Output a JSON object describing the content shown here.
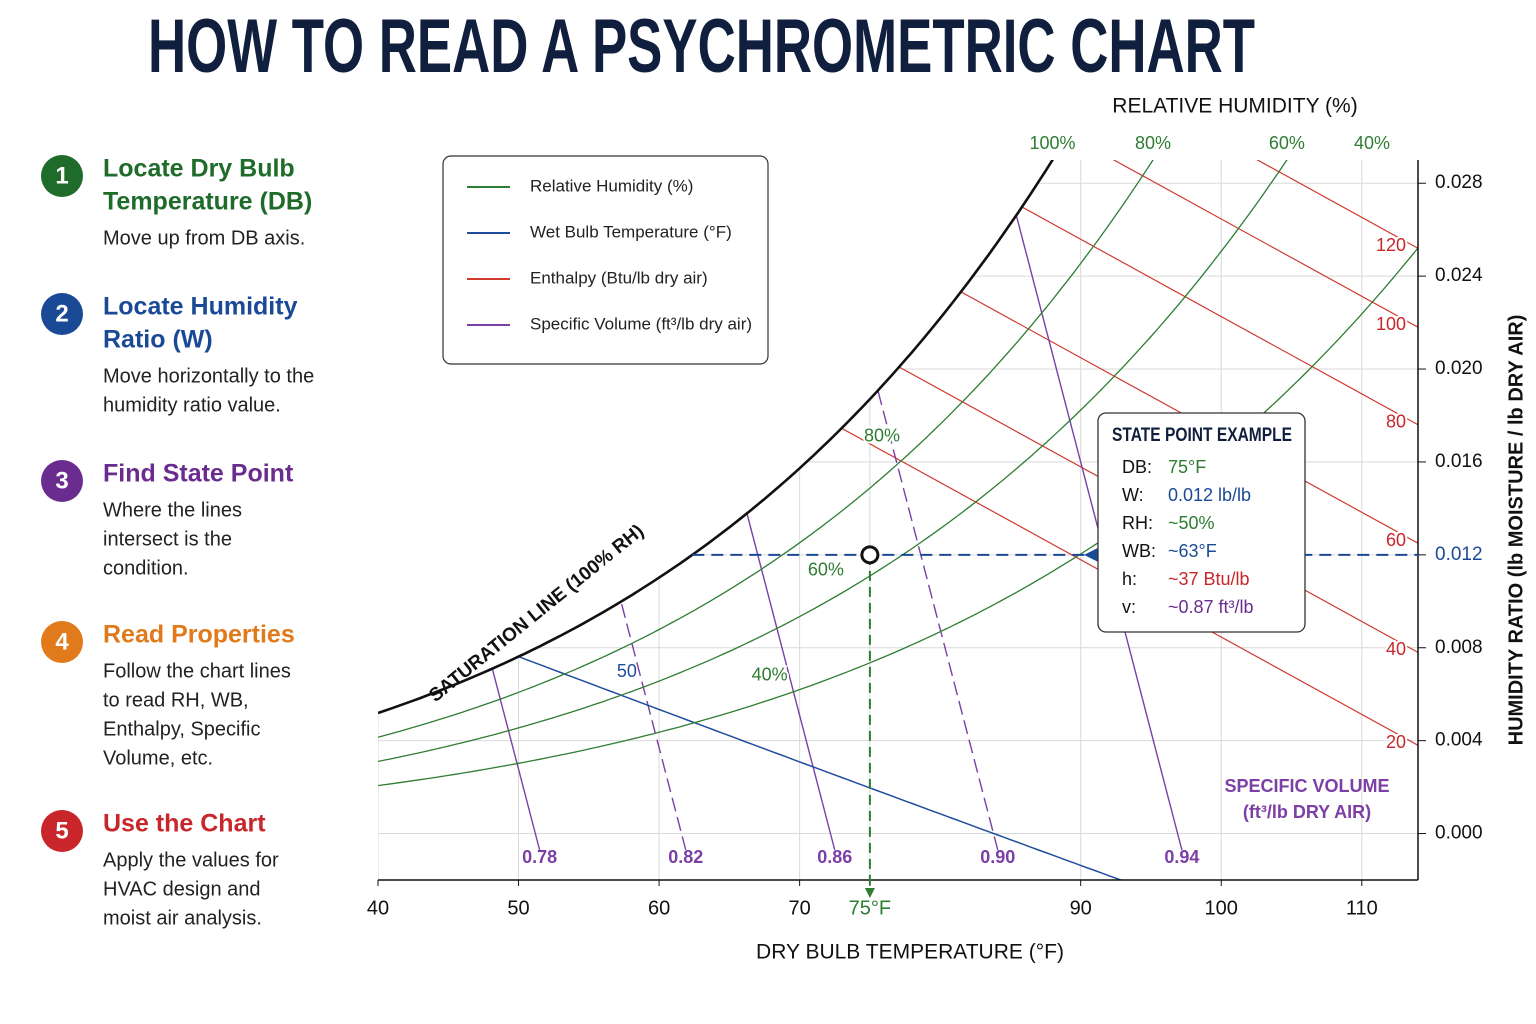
{
  "header": {
    "title": "HOW TO READ A PSYCHROMETRIC CHART"
  },
  "steps": [
    {
      "number": "1",
      "title": [
        "Locate Dry Bulb",
        "Temperature (DB)"
      ],
      "text": [
        "Move up from DB axis."
      ],
      "color": "#1e6b2a"
    },
    {
      "number": "2",
      "title": [
        "Locate Humidity",
        "Ratio (W)"
      ],
      "text": [
        "Move horizontally to the",
        "humidity ratio value."
      ],
      "color": "#1a4a96"
    },
    {
      "number": "3",
      "title": [
        "Find State Point"
      ],
      "text": [
        "Where the lines",
        "intersect is the",
        "condition."
      ],
      "color": "#6a2d8f"
    },
    {
      "number": "4",
      "title": [
        "Read Properties"
      ],
      "text": [
        "Follow the chart lines",
        "to read RH, WB,",
        "Enthalpy, Specific",
        "Volume, etc."
      ],
      "color": "#e07a1a"
    },
    {
      "number": "5",
      "title": [
        "Use the Chart"
      ],
      "text": [
        "Apply the values for",
        "HVAC design and",
        "moist air analysis."
      ],
      "color": "#c8262a"
    }
  ],
  "chart_data": {
    "type": "psychrometric",
    "x_label": "DRY BULB TEMPERATURE (°F)",
    "y_label": "HUMIDITY RATIO (lb MOISTURE / lb DRY AIR)",
    "top_label": "RELATIVE HUMIDITY (%)",
    "xlim": [
      40,
      114
    ],
    "xticks": [
      40,
      50,
      60,
      70,
      {
        "value": 75,
        "label": "75°F"
      },
      90,
      100,
      110
    ],
    "ylim": [
      -0.002,
      0.029
    ],
    "yticks": [
      {
        "value": 0,
        "label": "0.000"
      },
      0.004,
      0.008,
      0.012,
      0.016,
      {
        "value": 0.02,
        "label": "0.020"
      },
      0.024,
      0.028
    ],
    "grid": true,
    "legend": "upper-left",
    "saturation": {
      "label": "SATURATION LINE (100% RH)",
      "color": "#111111"
    },
    "relative_humidity": {
      "name": "Relative Humidity (%)",
      "color": "#2e7d32",
      "values": [
        100,
        80,
        60,
        40
      ],
      "value_labels": [
        "100%",
        "80%",
        "60%",
        "40%"
      ],
      "curve_labels": [
        null,
        "80%",
        "60%",
        "40%"
      ]
    },
    "wet_bulb": {
      "name": "Wet Bulb Temperature (°F)",
      "color": "#1f4e9c",
      "values": [
        50
      ]
    },
    "enthalpy": {
      "name": "Enthalpy (Btu/lb dry air)",
      "color": "#d03a2f",
      "values": [
        20,
        40,
        60,
        80,
        100,
        120
      ],
      "y": [
        0.0038,
        0.0078,
        0.0125,
        0.0176,
        0.0218,
        0.0252
      ]
    },
    "specific_volume": {
      "name": "Specific Volume (ft³/lb dry air)",
      "color": "#7b3fa6",
      "values": [
        0.78,
        0.82,
        0.86,
        0.9,
        0.94
      ],
      "value_labels": [
        "0.78",
        "0.82",
        "0.86",
        "0.90",
        "0.94"
      ],
      "x": [
        51.5,
        61.9,
        72.5,
        84.1,
        97.2
      ],
      "annotation": [
        "SPECIFIC VOLUME",
        "(ft³/lb DRY AIR)"
      ]
    },
    "state_point": {
      "title": "STATE POINT EXAMPLE",
      "x": 75,
      "y": 0.012,
      "rows": [
        {
          "label": "DB:",
          "value": "75°F",
          "color": "#2e7d32"
        },
        {
          "label": "W:",
          "value": "0.012 lb/lb",
          "color": "#1a4a96"
        },
        {
          "label": "RH:",
          "value": "~50%",
          "color": "#2e7d32"
        },
        {
          "label": "WB:",
          "value": "~63°F",
          "color": "#1a4a96"
        },
        {
          "label": "h:",
          "value": "~37 Btu/lb",
          "color": "#c8262a"
        },
        {
          "label": "v:",
          "value": "~0.87 ft³/lb",
          "color": "#6a2d8f"
        }
      ]
    }
  }
}
